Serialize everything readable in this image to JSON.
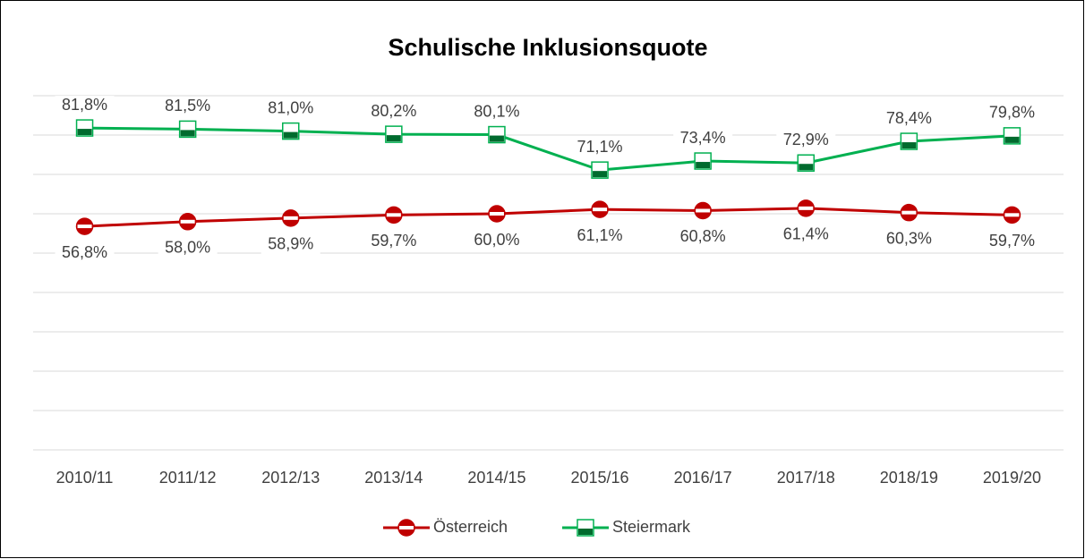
{
  "chart_data": {
    "type": "line",
    "title": "Schulische Inklusionsquote",
    "categories": [
      "2010/11",
      "2011/12",
      "2012/13",
      "2013/14",
      "2014/15",
      "2015/16",
      "2016/17",
      "2017/18",
      "2018/19",
      "2019/20"
    ],
    "series": [
      {
        "name": "Österreich",
        "color": "#c00000",
        "values": [
          56.8,
          58.0,
          58.9,
          59.7,
          60.0,
          61.1,
          60.8,
          61.4,
          60.3,
          59.7
        ],
        "value_labels": [
          "56,8%",
          "58,0%",
          "58,9%",
          "59,7%",
          "60,0%",
          "61,1%",
          "60,8%",
          "61,4%",
          "60,3%",
          "59,7%"
        ]
      },
      {
        "name": "Steiermark",
        "color": "#00b050",
        "values": [
          81.8,
          81.5,
          81.0,
          80.2,
          80.1,
          71.1,
          73.4,
          72.9,
          78.4,
          79.8
        ],
        "value_labels": [
          "81,8%",
          "81,5%",
          "81,0%",
          "80,2%",
          "80,1%",
          "71,1%",
          "73,4%",
          "72,9%",
          "78,4%",
          "79,8%"
        ]
      }
    ],
    "ylim": [
      0,
      90
    ],
    "yticks": [
      0,
      10,
      20,
      30,
      40,
      50,
      60,
      70,
      80,
      90
    ],
    "grid": true,
    "legend": "bottom"
  }
}
